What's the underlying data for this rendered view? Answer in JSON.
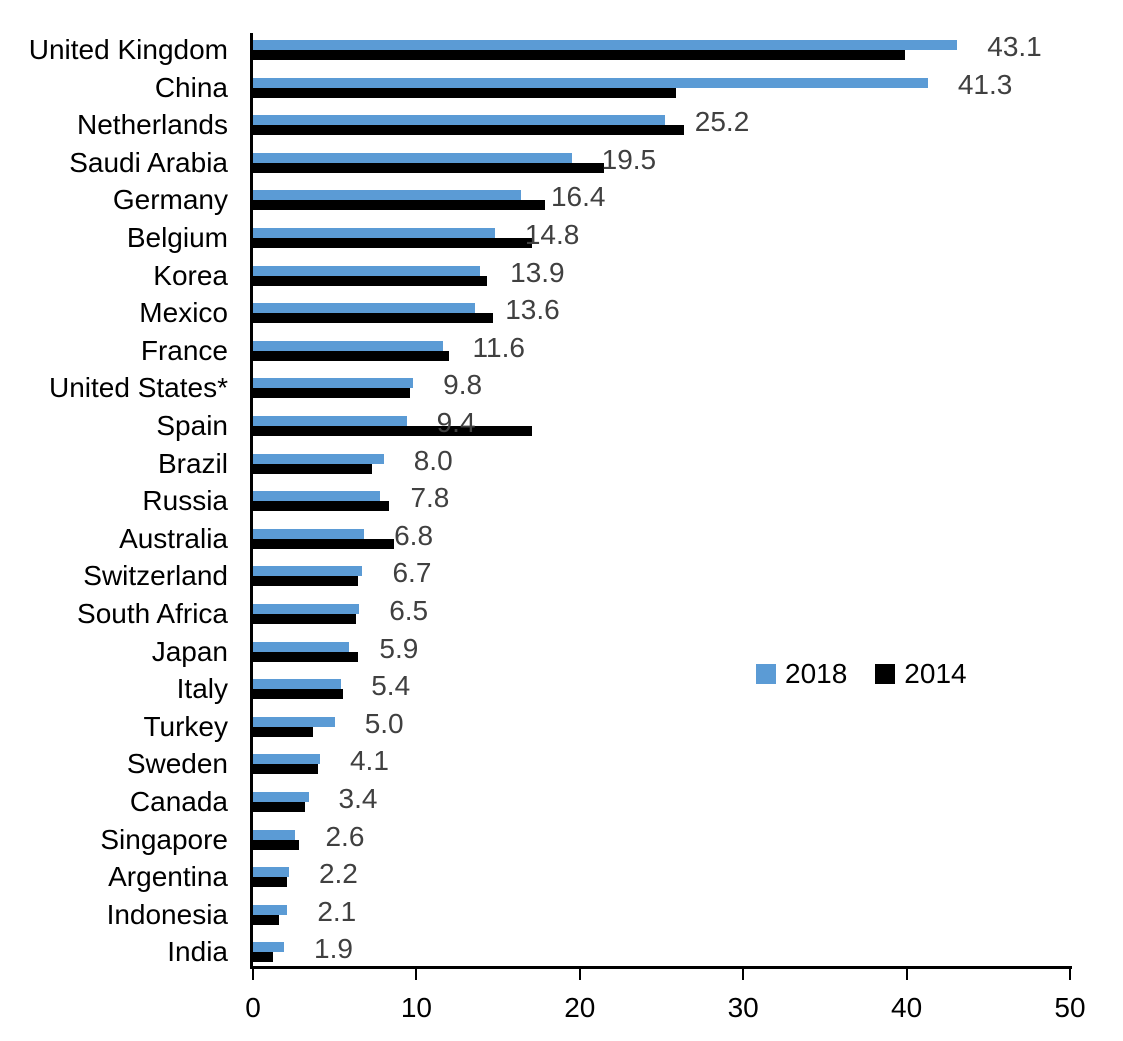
{
  "chart_data": {
    "type": "bar",
    "orientation": "horizontal",
    "title": "",
    "xlabel": "",
    "ylabel": "",
    "xlim": [
      0,
      50
    ],
    "x_ticks": [
      "0",
      "10",
      "20",
      "30",
      "40",
      "50"
    ],
    "grid": false,
    "legend": {
      "position": "center-right",
      "entries": [
        "2018",
        "2014"
      ]
    },
    "categories": [
      "United Kingdom",
      "China",
      "Netherlands",
      "Saudi Arabia",
      "Germany",
      "Belgium",
      "Korea",
      "Mexico",
      "France",
      "United States*",
      "Spain",
      "Brazil",
      "Russia",
      "Australia",
      "Switzerland",
      "South Africa",
      "Japan",
      "Italy",
      "Turkey",
      "Sweden",
      "Canada",
      "Singapore",
      "Argentina",
      "Indonesia",
      "India"
    ],
    "series": [
      {
        "name": "2018",
        "color": "#5B9BD5",
        "data_labels_shown": true,
        "values": [
          43.1,
          41.3,
          25.2,
          19.5,
          16.4,
          14.8,
          13.9,
          13.6,
          11.6,
          9.8,
          9.4,
          8.0,
          7.8,
          6.8,
          6.7,
          6.5,
          5.9,
          5.4,
          5.0,
          4.1,
          3.4,
          2.6,
          2.2,
          2.1,
          1.9
        ],
        "data_labels": [
          "43.1",
          "41.3",
          "25.2",
          "19.5",
          "16.4",
          "14.8",
          "13.9",
          "13.6",
          "11.6",
          "9.8",
          "9.4",
          "8.0",
          "7.8",
          "6.8",
          "6.7",
          "6.5",
          "5.9",
          "5.4",
          "5.0",
          "4.1",
          "3.4",
          "2.6",
          "2.2",
          "2.1",
          "1.9"
        ]
      },
      {
        "name": "2014",
        "color": "#000000",
        "data_labels_shown": false,
        "values": [
          39.9,
          25.9,
          26.4,
          21.5,
          17.9,
          17.1,
          14.3,
          14.7,
          12.0,
          9.6,
          17.1,
          7.3,
          8.3,
          8.6,
          6.4,
          6.3,
          6.4,
          5.5,
          3.7,
          4.0,
          3.2,
          2.8,
          2.1,
          1.6,
          1.2
        ]
      }
    ],
    "colors": {
      "background": "#FFFFFF",
      "axis": "#000000",
      "category_label": "#000000",
      "tick_label": "#000000",
      "value_label": "#404040"
    }
  }
}
